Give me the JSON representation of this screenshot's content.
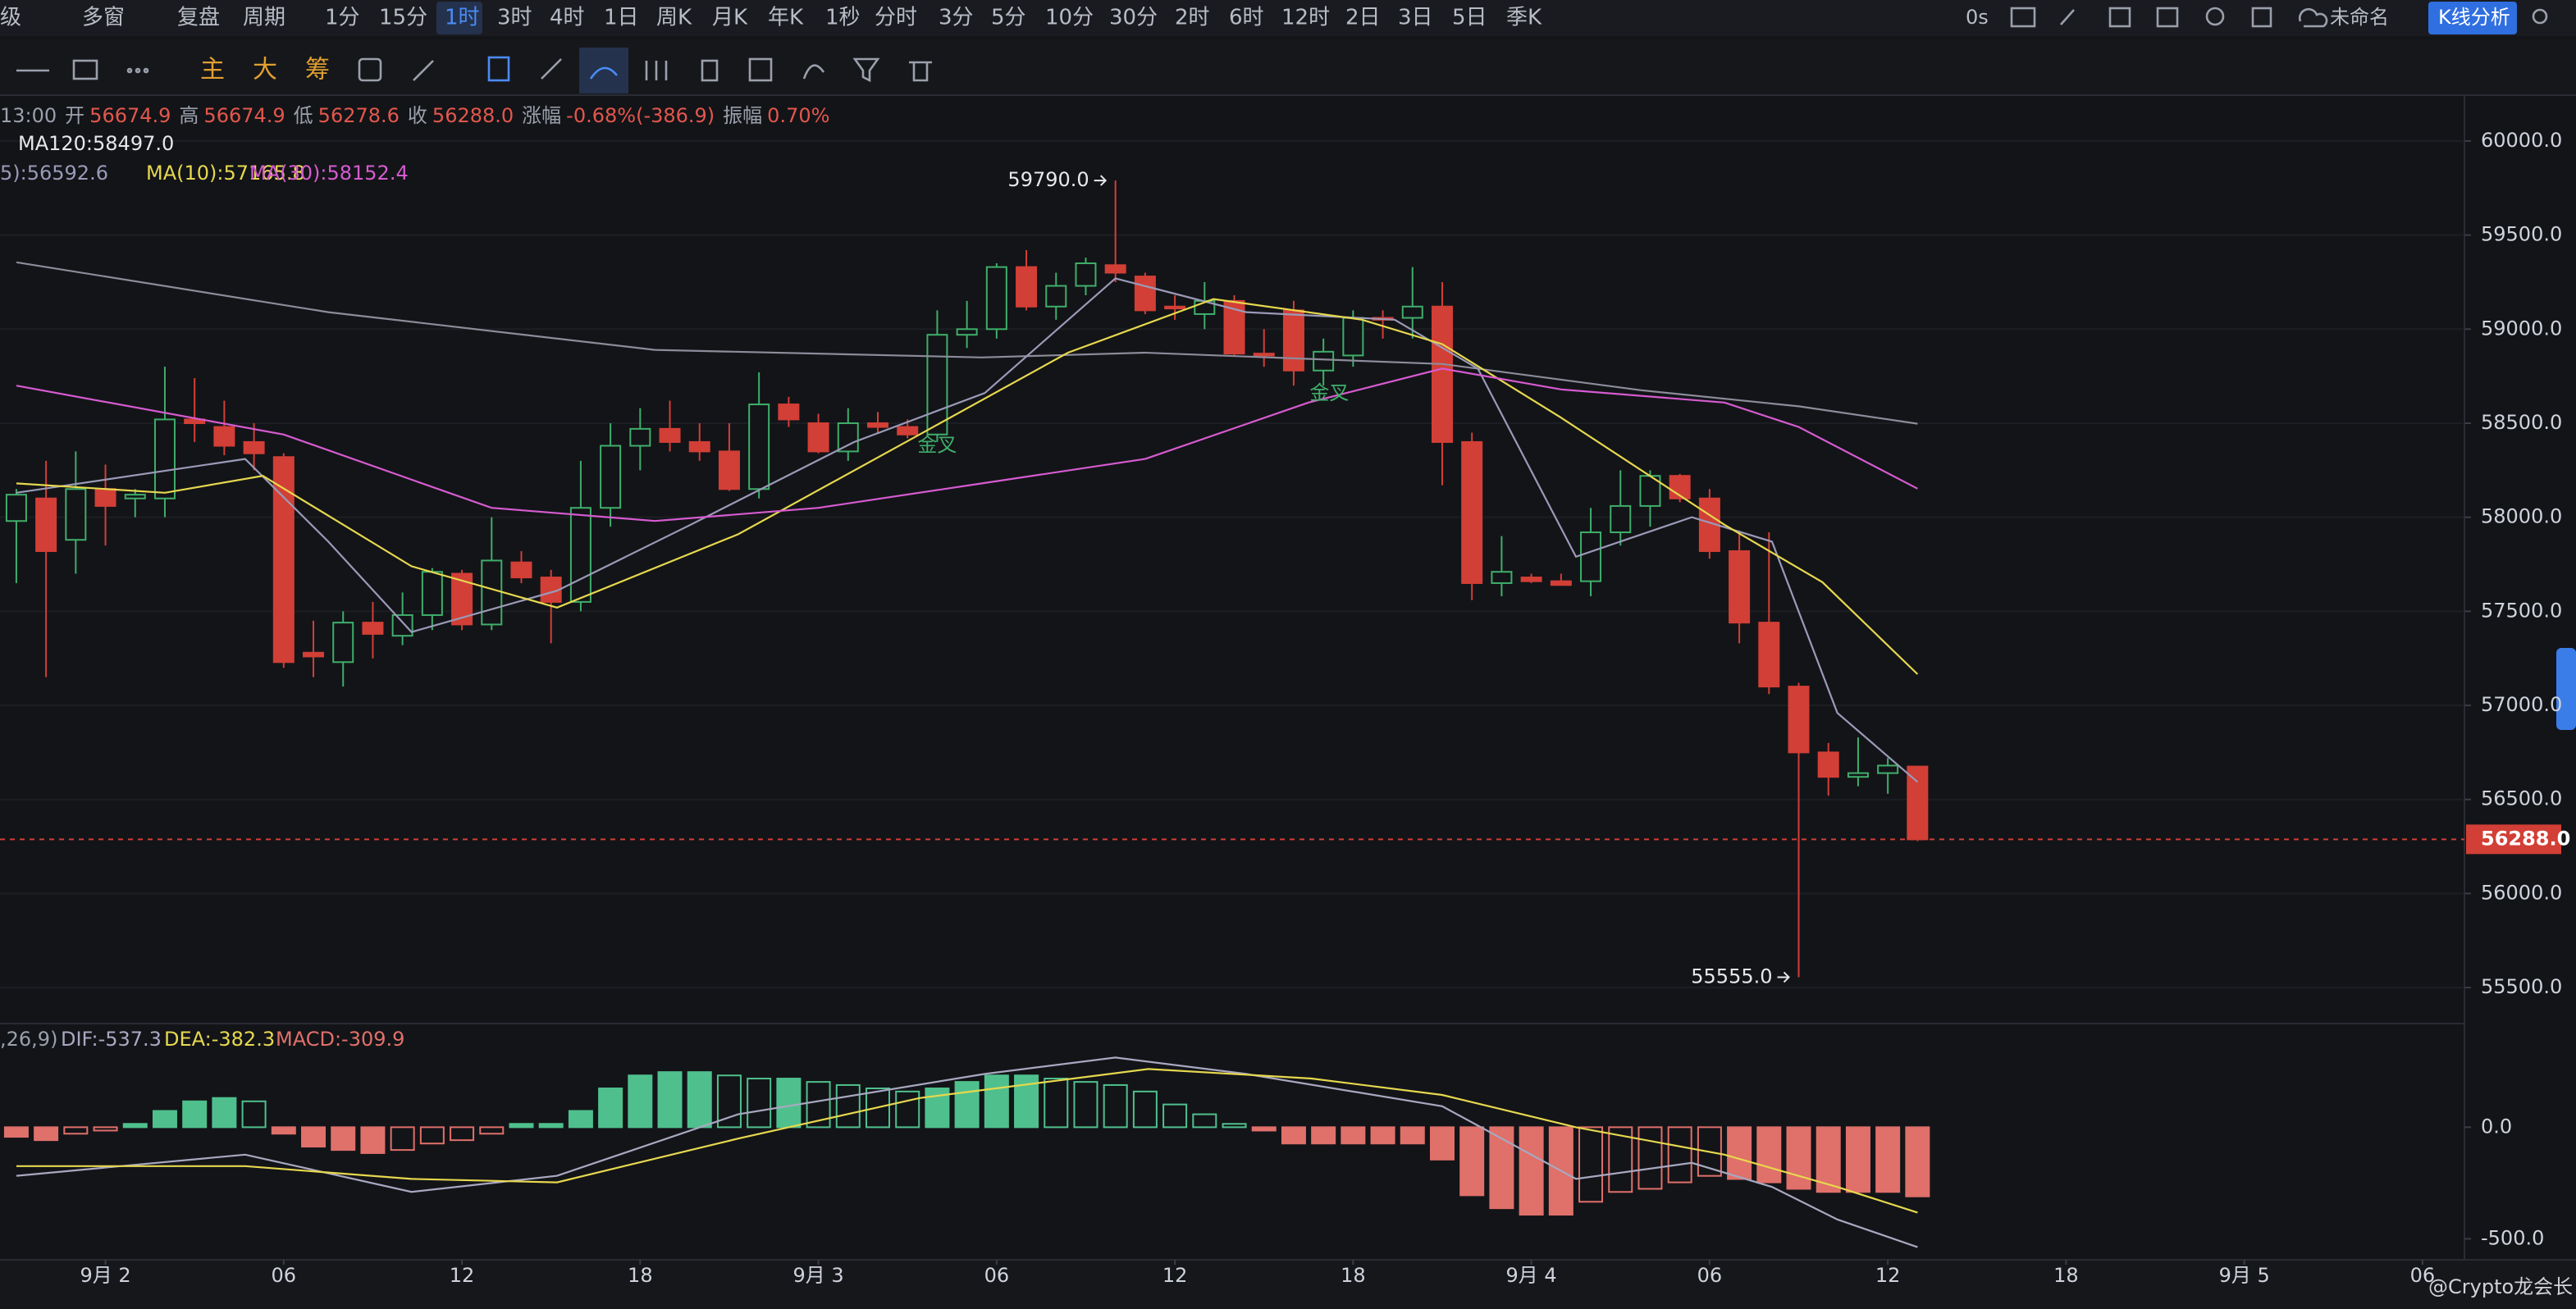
{
  "toolbar": {
    "items": [
      "级",
      "多窗",
      "复盘",
      "周期",
      "1分",
      "15分",
      "1时",
      "3时",
      "4时",
      "1日",
      "周K",
      "月K",
      "年K",
      "1秒",
      "分时",
      "3分",
      "5分",
      "10分",
      "30分",
      "2时",
      "6时",
      "12时",
      "2日",
      "3日",
      "5日",
      "季K"
    ],
    "right": [
      "0s",
      "未命名",
      "K线分析"
    ]
  },
  "drawing_tools": [
    "主",
    "大",
    "筹"
  ],
  "watermark": "@Crypto龙会长",
  "chart_data": [
    {
      "type": "candlestick",
      "info": [
        "13:00",
        "开",
        "56674.9",
        "高",
        "56674.9",
        "低",
        "56278.6",
        "收",
        "56288.0",
        "涨幅",
        "-0.68%(-386.9)",
        "振幅",
        "0.70%"
      ],
      "up_color": "#3fae6a",
      "down_color": "#d23f36",
      "open": [
        57980,
        58100,
        57880,
        58150,
        58100,
        58100,
        58520,
        58480,
        58400,
        58320,
        57280,
        57230,
        57440,
        57370,
        57480,
        57700,
        57430,
        57760,
        57680,
        57550,
        58050,
        58380,
        58470,
        58400,
        58350,
        58150,
        58600,
        58500,
        58350,
        58500,
        58480,
        58440,
        58970,
        59000,
        59330,
        59120,
        59230,
        59340,
        59280,
        59120,
        59080,
        59150,
        58870,
        59100,
        58780,
        58860,
        59060,
        59060,
        59120,
        58400,
        57650,
        57680,
        57660,
        57660,
        57920,
        58060,
        58220,
        58100,
        57820,
        57440,
        57100,
        56750,
        56620,
        56640,
        56674.9
      ],
      "high": [
        58150,
        58300,
        58350,
        58280,
        58150,
        58800,
        58740,
        58620,
        58500,
        58340,
        57450,
        57500,
        57550,
        57600,
        57730,
        57720,
        58000,
        57820,
        57720,
        58300,
        58500,
        58580,
        58620,
        58500,
        58500,
        58770,
        58640,
        58550,
        58580,
        58560,
        58520,
        59100,
        59150,
        59350,
        59420,
        59300,
        59380,
        59790,
        59300,
        59180,
        59250,
        59180,
        59000,
        59150,
        58950,
        59100,
        59100,
        59330,
        59250,
        58450,
        57900,
        57700,
        57700,
        58050,
        58250,
        58250,
        58230,
        58150,
        57930,
        57920,
        57120,
        56800,
        56830,
        56720,
        56674.9
      ],
      "low": [
        57650,
        57150,
        57700,
        57850,
        58000,
        58000,
        58400,
        58330,
        58250,
        57200,
        57150,
        57100,
        57250,
        57320,
        57400,
        57400,
        57400,
        57650,
        57330,
        57500,
        57950,
        58250,
        58350,
        58300,
        58140,
        58100,
        58480,
        58340,
        58300,
        58450,
        58420,
        58400,
        58900,
        58950,
        59100,
        59050,
        59180,
        59250,
        59080,
        59050,
        59000,
        58860,
        58800,
        58700,
        58700,
        58800,
        58950,
        58950,
        58170,
        57560,
        57580,
        57650,
        57650,
        57580,
        57850,
        57950,
        58080,
        57780,
        57330,
        57060,
        55555,
        56520,
        56570,
        56530,
        56278.6
      ],
      "close": [
        58120,
        57820,
        58150,
        58060,
        58120,
        58520,
        58500,
        58380,
        58340,
        57230,
        57260,
        57440,
        57380,
        57480,
        57710,
        57430,
        57770,
        57680,
        57550,
        58050,
        58380,
        58470,
        58400,
        58350,
        58150,
        58600,
        58520,
        58350,
        58500,
        58480,
        58440,
        58970,
        59000,
        59330,
        59120,
        59230,
        59350,
        59300,
        59100,
        59110,
        59150,
        58870,
        58860,
        58780,
        58880,
        59060,
        59050,
        59120,
        58400,
        57650,
        57710,
        57660,
        57640,
        57920,
        58060,
        58220,
        58100,
        57820,
        57440,
        57100,
        56750,
        56620,
        56640,
        56680,
        56288
      ],
      "lines": [
        {
          "name": "MA120:58497.0",
          "color": "#8c8c9a",
          "x": [
            0,
            10.5,
            21.5,
            32.5,
            38,
            48,
            54.7,
            60,
            64
          ],
          "values": [
            59355,
            59090,
            58890,
            58850,
            58875,
            58815,
            58675,
            58590,
            58497
          ]
        },
        {
          "name": "5):56592.6",
          "color": "#9a9ab8",
          "x": [
            0,
            7.7,
            10.5,
            13.3,
            18.2,
            22.7,
            28.2,
            32.6,
            37,
            41.4,
            46.4,
            49.2,
            52.5,
            56.4,
            59.1,
            61.3,
            64
          ],
          "values": [
            58130,
            58310,
            57870,
            57390,
            57610,
            57960,
            58400,
            58660,
            59270,
            59090,
            59050,
            58790,
            57790,
            58000,
            57870,
            56960,
            56592.6
          ]
        },
        {
          "name": "MA(10):57165.8",
          "color": "#e6d84e",
          "x": [
            0,
            5,
            8.3,
            13.3,
            18.2,
            24.3,
            30.4,
            35.4,
            40.3,
            45.3,
            48,
            52,
            57.5,
            60.8,
            64
          ],
          "values": [
            58180,
            58130,
            58220,
            57740,
            57520,
            57910,
            58440,
            58875,
            59160,
            59050,
            58920,
            58530,
            57960,
            57655,
            57165.8
          ]
        },
        {
          "name": "MA(30):58152.4",
          "color": "#d65bd0",
          "x": [
            0,
            9,
            16,
            21.5,
            27,
            32.5,
            38,
            43.5,
            48,
            52,
            57.5,
            60,
            64
          ],
          "values": [
            58700,
            58440,
            58050,
            57980,
            58050,
            58180,
            58310,
            58610,
            58790,
            58680,
            58610,
            58480,
            58152.4
          ]
        }
      ],
      "annotations": [
        {
          "label": "59790.0",
          "x": 37,
          "value": 59790,
          "kind": "high"
        },
        {
          "label": "55555.0",
          "x": 60,
          "value": 55555,
          "kind": "low"
        },
        {
          "label": "金叉",
          "x": 31,
          "value": 58380,
          "kind": "cross"
        },
        {
          "label": "金叉",
          "x": 44.2,
          "value": 58657,
          "kind": "cross"
        }
      ],
      "last_price": {
        "value": 56288,
        "label": "56288.0"
      },
      "xlim": [
        -0.55,
        82.3
      ],
      "xticks": [
        {
          "value": 3,
          "label": "9月 2"
        },
        {
          "value": 9,
          "label": "06"
        },
        {
          "value": 15,
          "label": "12"
        },
        {
          "value": 21,
          "label": "18"
        },
        {
          "value": 27,
          "label": "9月 3"
        },
        {
          "value": 33,
          "label": "06"
        },
        {
          "value": 39,
          "label": "12"
        },
        {
          "value": 45,
          "label": "18"
        },
        {
          "value": 51,
          "label": "9月 4"
        },
        {
          "value": 57,
          "label": "06"
        },
        {
          "value": 63,
          "label": "12"
        },
        {
          "value": 69,
          "label": "18"
        },
        {
          "value": 75,
          "label": "9月 5"
        },
        {
          "value": 81,
          "label": "06"
        }
      ],
      "ylim": [
        55326,
        60209
      ],
      "yticks": [
        {
          "value": 55500,
          "label": "55500.0"
        },
        {
          "value": 56000,
          "label": "56000.0"
        },
        {
          "value": 56500,
          "label": "56500.0"
        },
        {
          "value": 57000,
          "label": "57000.0"
        },
        {
          "value": 57500,
          "label": "57500.0"
        },
        {
          "value": 58000,
          "label": "58000.0"
        },
        {
          "value": 58500,
          "label": "58500.0"
        },
        {
          "value": 59000,
          "label": "59000.0"
        },
        {
          "value": 59500,
          "label": "59500.0"
        },
        {
          "value": 60000,
          "label": "60000.0"
        }
      ],
      "grid": true
    },
    {
      "type": "macd",
      "indicator": ",26,9)",
      "histogram_name": "MACD:-309.9",
      "up_color": "#4fc08d",
      "down_color": "#e0706a",
      "histogram": [
        -43,
        -58,
        -29,
        -15,
        15,
        73,
        116,
        131,
        116,
        -29,
        -87,
        -102,
        -116,
        -102,
        -73,
        -58,
        -29,
        15,
        15,
        73,
        174,
        232,
        247,
        247,
        232,
        218,
        218,
        203,
        189,
        174,
        160,
        174,
        203,
        232,
        232,
        218,
        203,
        189,
        160,
        102,
        58,
        15,
        -15,
        -73,
        -73,
        -73,
        -73,
        -73,
        -145,
        -305,
        -363,
        -392,
        -392,
        -334,
        -290,
        -276,
        -247,
        -218,
        -232,
        -247,
        -276,
        -290,
        -290,
        -290,
        -309.9
      ],
      "lines": [
        {
          "name": "DIF:-537.3",
          "color": "#a8a8c0",
          "x": [
            0,
            7.7,
            13.3,
            18.2,
            24.3,
            32.6,
            37,
            41.4,
            48,
            52.5,
            56.4,
            59.1,
            61.3,
            64
          ],
          "values": [
            -218,
            -123,
            -290,
            -218,
            58,
            239,
            312,
            239,
            94,
            -232,
            -160,
            -268,
            -413,
            -537.3
          ]
        },
        {
          "name": "DEA:-382.3",
          "color": "#e6d84e",
          "x": [
            0,
            7.7,
            13.3,
            18.2,
            24.3,
            30.4,
            38.1,
            43.6,
            48,
            52.5,
            57.5,
            61.3,
            64
          ],
          "values": [
            -174,
            -174,
            -232,
            -247,
            -51,
            131,
            261,
            218,
            145,
            0,
            -123,
            -268,
            -382.3
          ]
        }
      ],
      "ylim": [
        -594,
        457
      ],
      "yticks": [
        {
          "value": -500,
          "label": "-500.0"
        },
        {
          "value": 0,
          "label": "0.0"
        }
      ]
    }
  ]
}
